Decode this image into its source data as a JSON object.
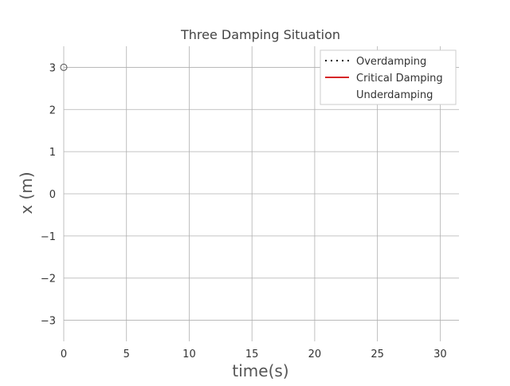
{
  "chart_data": {
    "type": "line",
    "title": "Three Damping Situation",
    "xlabel": "time(s)",
    "ylabel": "x (m)",
    "xlim": [
      0,
      31.5
    ],
    "ylim": [
      -3.5,
      3.5
    ],
    "x_ticks": [
      0,
      5,
      10,
      15,
      20,
      25,
      30
    ],
    "y_ticks": [
      3,
      2,
      1,
      0,
      -1,
      -2,
      -3
    ],
    "x_tick_labels": [
      "0",
      "5",
      "10",
      "15",
      "20",
      "25",
      "30"
    ],
    "y_tick_labels": [
      "3",
      "2",
      "1",
      "0",
      "−1",
      "−2",
      "−3"
    ],
    "grid": true,
    "legend_position": "top-right",
    "series": [
      {
        "name": "Overdamping",
        "style": "dotted",
        "color": "#000000",
        "x": [],
        "y": []
      },
      {
        "name": "Critical Damping",
        "style": "solid",
        "color": "#d62728",
        "x": [],
        "y": []
      },
      {
        "name": "Underdamping",
        "style": "solid",
        "color": "#ffffff",
        "x": [],
        "y": []
      }
    ],
    "markers": [
      {
        "x": 0,
        "y": 3
      }
    ]
  },
  "colors": {
    "grid": "#b0b0b0",
    "background": "#ffffff",
    "critical": "#d62728"
  }
}
